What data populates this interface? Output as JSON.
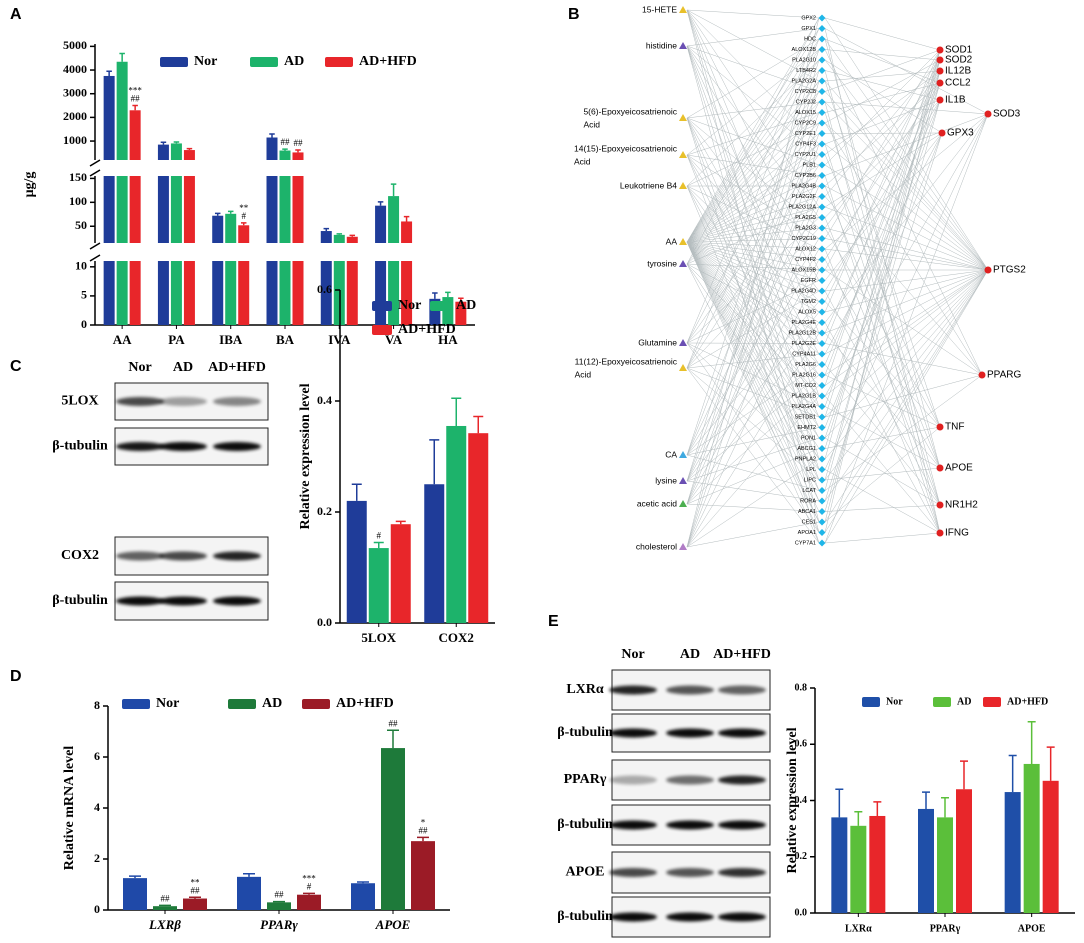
{
  "panel_labels": [
    "A",
    "B",
    "C",
    "D",
    "E"
  ],
  "chart_data": [
    {
      "type": "bar",
      "y_label": "μg/g",
      "categories": [
        "AA",
        "PA",
        "IBA",
        "BA",
        "IVA",
        "VA",
        "HA"
      ],
      "segments": [
        {
          "ylim": [
            0,
            11
          ],
          "yticks": [
            0,
            5,
            10
          ]
        },
        {
          "ylim": [
            15,
            155
          ],
          "yticks": [
            50,
            100,
            150
          ]
        },
        {
          "ylim": [
            200,
            5100
          ],
          "yticks": [
            1000,
            2000,
            3000,
            4000,
            5000
          ]
        }
      ],
      "series": [
        {
          "name": "Nor",
          "color": "#1f3c99",
          "values": [
            3750,
            850,
            72,
            1150,
            40,
            93,
            4.5
          ],
          "errors": [
            200,
            100,
            5,
            150,
            5,
            8,
            1
          ],
          "annotations": [
            null,
            null,
            null,
            null,
            null,
            null,
            null
          ]
        },
        {
          "name": "AD",
          "color": "#1db36b",
          "values": [
            4350,
            900,
            76,
            600,
            32,
            113,
            4.8
          ],
          "errors": [
            350,
            60,
            5,
            60,
            2,
            25,
            0.8
          ],
          "annotations": [
            null,
            null,
            null,
            [
              "##"
            ],
            null,
            null,
            null
          ]
        },
        {
          "name": "AD+HFD",
          "color": "#e8262a",
          "values": [
            2300,
            620,
            52,
            520,
            28,
            60,
            4.0
          ],
          "errors": [
            200,
            60,
            5,
            100,
            3,
            10,
            0.6
          ],
          "annotations": [
            [
              "***",
              "##"
            ],
            null,
            [
              "**",
              "#"
            ],
            [
              "##"
            ],
            null,
            null,
            null
          ]
        }
      ]
    },
    {
      "type": "bar",
      "y_label": "Relative expression level",
      "categories": [
        "5LOX",
        "COX2"
      ],
      "ylim": [
        0,
        0.6
      ],
      "yticks": [
        {
          "value": 0,
          "label": "0.0"
        },
        0.2,
        0.4,
        0.6
      ],
      "series": [
        {
          "name": "Nor",
          "color": "#1f3c99",
          "values": [
            0.22,
            0.25
          ],
          "errors": [
            0.03,
            0.08
          ],
          "annotations": [
            null,
            null
          ]
        },
        {
          "name": "AD",
          "color": "#1db36b",
          "values": [
            0.135,
            0.355
          ],
          "errors": [
            0.01,
            0.05
          ],
          "annotations": [
            [
              "#"
            ],
            null
          ]
        },
        {
          "name": "AD+HFD",
          "color": "#e8262a",
          "values": [
            0.178,
            0.342
          ],
          "errors": [
            0.005,
            0.03
          ],
          "annotations": [
            null,
            null
          ]
        }
      ]
    },
    {
      "type": "bar",
      "y_label": "Relative mRNA level",
      "categories": [
        "LXRβ",
        "PPARγ",
        "APOE"
      ],
      "ylim": [
        0,
        8
      ],
      "yticks": [
        0,
        2,
        4,
        6,
        8
      ],
      "series": [
        {
          "name": "Nor",
          "color": "#1f49a8",
          "values": [
            1.25,
            1.3,
            1.05
          ],
          "errors": [
            0.08,
            0.12,
            0.05
          ],
          "annotations": [
            null,
            null,
            null
          ]
        },
        {
          "name": "AD",
          "color": "#1e7a3a",
          "values": [
            0.15,
            0.3,
            6.35
          ],
          "errors": [
            0.03,
            0.03,
            0.7
          ],
          "annotations": [
            [
              "##"
            ],
            [
              "##"
            ],
            [
              "##"
            ]
          ]
        },
        {
          "name": "AD+HFD",
          "color": "#9b1b26",
          "values": [
            0.45,
            0.6,
            2.7
          ],
          "errors": [
            0.05,
            0.05,
            0.15
          ],
          "annotations": [
            [
              "**",
              "##"
            ],
            [
              "***",
              "#"
            ],
            [
              "*",
              "##"
            ]
          ]
        }
      ]
    },
    {
      "type": "bar",
      "y_label": "Relative expression level",
      "categories": [
        "LXRα",
        "PPARγ",
        "APOE"
      ],
      "ylim": [
        0,
        0.8
      ],
      "yticks": [
        {
          "value": 0,
          "label": "0.0"
        },
        0.2,
        0.4,
        0.6,
        0.8
      ],
      "series": [
        {
          "name": "Nor",
          "color": "#1f4fa8",
          "values": [
            0.34,
            0.37,
            0.43
          ],
          "errors": [
            0.1,
            0.06,
            0.13
          ],
          "annotations": [
            null,
            null,
            null
          ]
        },
        {
          "name": "AD",
          "color": "#5bbf3a",
          "values": [
            0.31,
            0.34,
            0.53
          ],
          "errors": [
            0.05,
            0.07,
            0.15
          ],
          "annotations": [
            null,
            null,
            null
          ]
        },
        {
          "name": "AD+HFD",
          "color": "#e8262a",
          "values": [
            0.345,
            0.44,
            0.47
          ],
          "errors": [
            0.05,
            0.1,
            0.12
          ],
          "annotations": [
            null,
            null,
            null
          ]
        }
      ]
    }
  ],
  "blots": [
    {
      "lanes": [
        "Nor",
        "AD",
        "AD+HFD"
      ],
      "rows": [
        "5LOX",
        "β-tubulin",
        "COX2",
        "β-tubulin"
      ]
    },
    {
      "lanes": [
        "Nor",
        "AD",
        "AD+HFD"
      ],
      "rows": [
        "LXRα",
        "β-tubulin",
        "PPARγ",
        "β-tubulin",
        "APOE",
        "β-tubulin"
      ]
    }
  ],
  "network": {
    "left_nodes": [
      {
        "label": "15-HETE",
        "color": "#e8c02a"
      },
      {
        "label": "histidine",
        "color": "#6a4fb3"
      },
      {
        "label": [
          "5(6)-Epoxyeicosatrienoic",
          "Acid"
        ],
        "color": "#e8c02a"
      },
      {
        "label": [
          "14(15)-Epoxyeicosatrienoic",
          "Acid"
        ],
        "color": "#e8c02a"
      },
      {
        "label": "Leukotriene B4",
        "color": "#e8c02a"
      },
      {
        "label": "AA",
        "color": "#e8c02a"
      },
      {
        "label": "tyrosine",
        "color": "#6a4fb3"
      },
      {
        "label": "Glutamine",
        "color": "#6a4fb3"
      },
      {
        "label": [
          "11(12)-Epoxyeicosatrienoic",
          "Acid"
        ],
        "color": "#e8c02a"
      },
      {
        "label": "CA",
        "color": "#3fa9e0"
      },
      {
        "label": "lysine",
        "color": "#6a4fb3"
      },
      {
        "label": "acetic acid",
        "color": "#4caf50"
      },
      {
        "label": "cholesterol",
        "color": "#b07cc6"
      }
    ],
    "genes": [
      "GPX2",
      "GPX1",
      "HDC",
      "ALOX12B",
      "PLA2G10",
      "LTB4R2",
      "PLA2G2A",
      "CYP2C8",
      "CYP2J2",
      "ALOX15",
      "CYP2C9",
      "CYP2E1",
      "CYP4F3",
      "CYP2U1",
      "PLB1",
      "CYP2B6",
      "PLA2G4B",
      "PLA2G2F",
      "PLA2G12A",
      "PLA2G5",
      "PLA2G3",
      "CYP2C19",
      "ALOX12",
      "CYP4F2",
      "ALOX15B",
      "EGFR",
      "PLA2G4D",
      "TGM2",
      "ALOX5",
      "PLA2G4E",
      "PLA2G12B",
      "PLA2G2E",
      "CYP4A11",
      "PLA2G6",
      "PLA2G16",
      "MT-CO2",
      "PLA2G1B",
      "PLA2G4A",
      "SETDB1",
      "EHMT2",
      "PON1",
      "ABCG1",
      "PNPLA2",
      "LPL",
      "LIPC",
      "LCAT",
      "RORA",
      "ABCA1",
      "CES1",
      "APOA1",
      "CYP7A1"
    ],
    "gene_color": "#1fb6e8",
    "right_nodes": [
      "SOD1",
      "SOD2",
      "IL12B",
      "CCL2",
      "IL1B",
      "SOD3",
      "GPX3",
      "PTGS2",
      "PPARG",
      "TNF",
      "APOE",
      "NR1H2",
      "IFNG"
    ],
    "right_color": "#e02020"
  }
}
